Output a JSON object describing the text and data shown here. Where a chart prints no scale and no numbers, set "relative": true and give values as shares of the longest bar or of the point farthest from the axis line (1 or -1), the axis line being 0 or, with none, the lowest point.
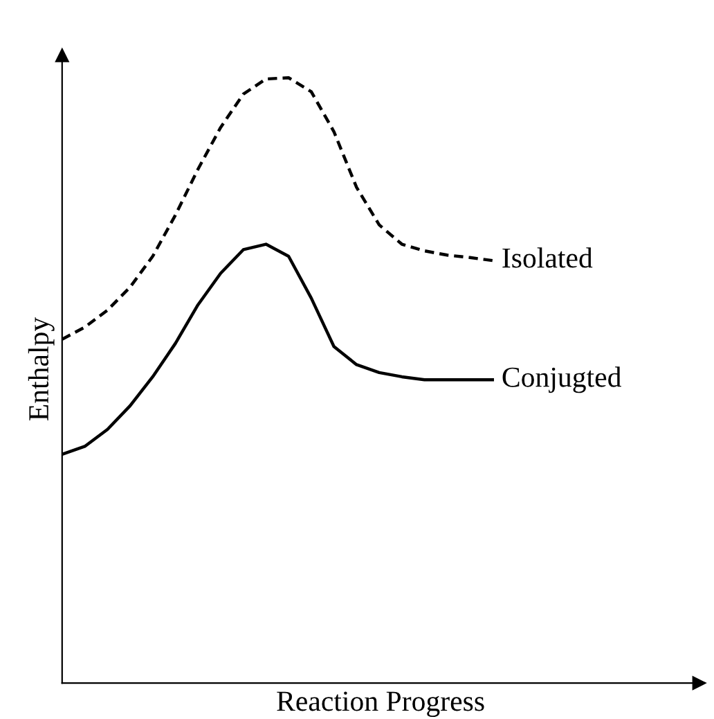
{
  "chart_data": {
    "type": "line",
    "relative": true,
    "xlabel": "Reaction Progress",
    "ylabel": "Enthalpy",
    "legend": false,
    "marker": "none",
    "categories": [
      null,
      null,
      null,
      null,
      null,
      null,
      null,
      null,
      null,
      null,
      null,
      null,
      null,
      null,
      null,
      null,
      null,
      null,
      null,
      null
    ],
    "series": [
      {
        "name": "Isolated",
        "color": "#000000",
        "line_style": "dashed",
        "values": [
          0.568,
          0.588,
          0.616,
          0.654,
          0.705,
          0.773,
          0.849,
          0.918,
          0.973,
          0.998,
          1,
          0.977,
          0.911,
          0.819,
          0.757,
          0.725,
          0.714,
          0.707,
          0.703,
          0.698
        ]
      },
      {
        "name": "Conjugted",
        "color": "#000000",
        "line_style": "solid",
        "values": [
          0.378,
          0.391,
          0.419,
          0.458,
          0.506,
          0.561,
          0.625,
          0.677,
          0.716,
          0.725,
          0.705,
          0.636,
          0.556,
          0.526,
          0.513,
          0.506,
          0.501,
          0.501,
          0.501,
          0.501
        ]
      }
    ]
  }
}
